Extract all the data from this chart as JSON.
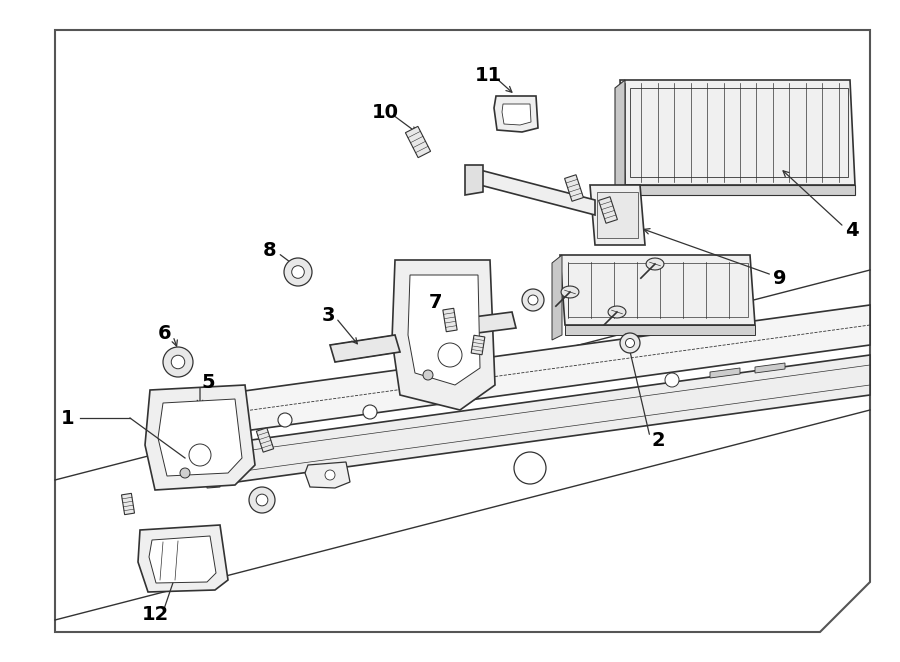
{
  "background_color": "#ffffff",
  "line_color": "#333333",
  "label_color": "#000000",
  "fig_width": 9.0,
  "fig_height": 6.62,
  "dpi": 100
}
